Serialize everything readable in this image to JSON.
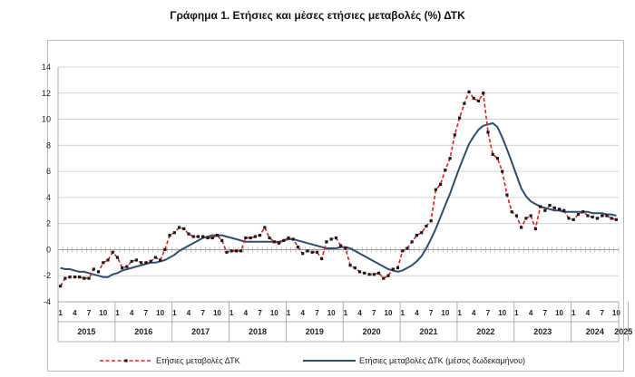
{
  "chart_data": {
    "type": "line",
    "title": "Γράφημα 1. Ετήσιες και μέσες ετήσιες μεταβολές (%) ΔΤΚ",
    "xlabel": "",
    "ylabel": "",
    "ylim": [
      -4,
      14
    ],
    "yticks": [
      -4,
      -2,
      0,
      2,
      4,
      6,
      8,
      10,
      12,
      14
    ],
    "grid": true,
    "legend_position": "bottom",
    "month_tick_labels": [
      "1",
      "4",
      "7",
      "10"
    ],
    "years": [
      "2015",
      "2016",
      "2017",
      "2018",
      "2019",
      "2020",
      "2021",
      "2022",
      "2023",
      "2024",
      "2025"
    ],
    "x_start": "2015-01",
    "x_end": "2025-01",
    "series": [
      {
        "name": "Ετήσιες μεταβολές ΔΤΚ",
        "color": "#e0201b",
        "marker_color": "#1a1a1a",
        "style": "dashed-with-markers",
        "values": [
          -2.8,
          -2.2,
          -2.1,
          -2.1,
          -2.1,
          -2.2,
          -2.2,
          -1.5,
          -1.7,
          -1.0,
          -0.8,
          -0.2,
          -0.6,
          -1.4,
          -1.3,
          -0.9,
          -0.8,
          -1.0,
          -1.0,
          -0.9,
          -0.6,
          -0.8,
          0.0,
          1.1,
          1.3,
          1.7,
          1.6,
          1.2,
          1.0,
          1.0,
          1.0,
          0.9,
          0.9,
          1.1,
          0.7,
          -0.2,
          -0.1,
          -0.1,
          -0.1,
          0.9,
          0.9,
          1.0,
          1.1,
          1.7,
          0.9,
          0.6,
          0.5,
          0.7,
          0.9,
          0.8,
          0.2,
          -0.3,
          -0.1,
          -0.2,
          -0.2,
          -0.7,
          0.6,
          0.8,
          0.9,
          0.3,
          0.1,
          -1.2,
          -1.4,
          -1.7,
          -1.8,
          -1.9,
          -1.9,
          -1.8,
          -2.2,
          -2.0,
          -1.5,
          -1.4,
          -0.1,
          0.1,
          0.6,
          1.1,
          1.3,
          1.8,
          2.2,
          4.6,
          5.0,
          6.1,
          7.0,
          8.8,
          10.1,
          11.2,
          12.1,
          11.6,
          11.4,
          12.0,
          9.0,
          7.3,
          7.0,
          6.0,
          4.2,
          2.9,
          2.6,
          1.7,
          2.4,
          2.6,
          1.6,
          3.3,
          3.0,
          3.4,
          3.2,
          3.1,
          3.0,
          2.4,
          2.3,
          2.7,
          2.9,
          2.6,
          2.5,
          2.4,
          2.6,
          2.6,
          2.4,
          2.3
        ]
      },
      {
        "name": "Ετήσιες μεταβολές ΔΤΚ (μέσος δωδεκαμήνου)",
        "color": "#2e4d6e",
        "style": "solid",
        "values": [
          -1.4,
          -1.5,
          -1.5,
          -1.6,
          -1.7,
          -1.7,
          -1.8,
          -1.9,
          -2.0,
          -2.1,
          -2.1,
          -1.9,
          -1.8,
          -1.6,
          -1.5,
          -1.4,
          -1.3,
          -1.2,
          -1.1,
          -1.0,
          -1.0,
          -0.9,
          -0.8,
          -0.6,
          -0.4,
          -0.1,
          0.1,
          0.3,
          0.5,
          0.7,
          0.9,
          1.0,
          1.1,
          1.1,
          1.1,
          1.0,
          0.9,
          0.8,
          0.7,
          0.6,
          0.6,
          0.6,
          0.6,
          0.6,
          0.6,
          0.6,
          0.6,
          0.7,
          0.8,
          0.8,
          0.7,
          0.6,
          0.5,
          0.4,
          0.3,
          0.2,
          0.1,
          0.1,
          0.1,
          0.2,
          0.2,
          0.1,
          -0.1,
          -0.3,
          -0.5,
          -0.7,
          -0.9,
          -1.1,
          -1.3,
          -1.5,
          -1.6,
          -1.7,
          -1.6,
          -1.4,
          -1.2,
          -0.9,
          -0.5,
          0.1,
          0.8,
          1.6,
          2.5,
          3.4,
          4.3,
          5.3,
          6.3,
          7.2,
          8.1,
          8.7,
          9.2,
          9.5,
          9.6,
          9.7,
          9.4,
          8.6,
          7.7,
          6.7,
          5.7,
          4.7,
          4.1,
          3.7,
          3.5,
          3.3,
          3.2,
          3.1,
          3.0,
          3.0,
          2.9,
          2.9,
          2.9,
          2.9,
          2.9,
          2.9,
          2.8,
          2.8,
          2.8,
          2.7,
          2.7,
          2.6
        ]
      }
    ]
  }
}
